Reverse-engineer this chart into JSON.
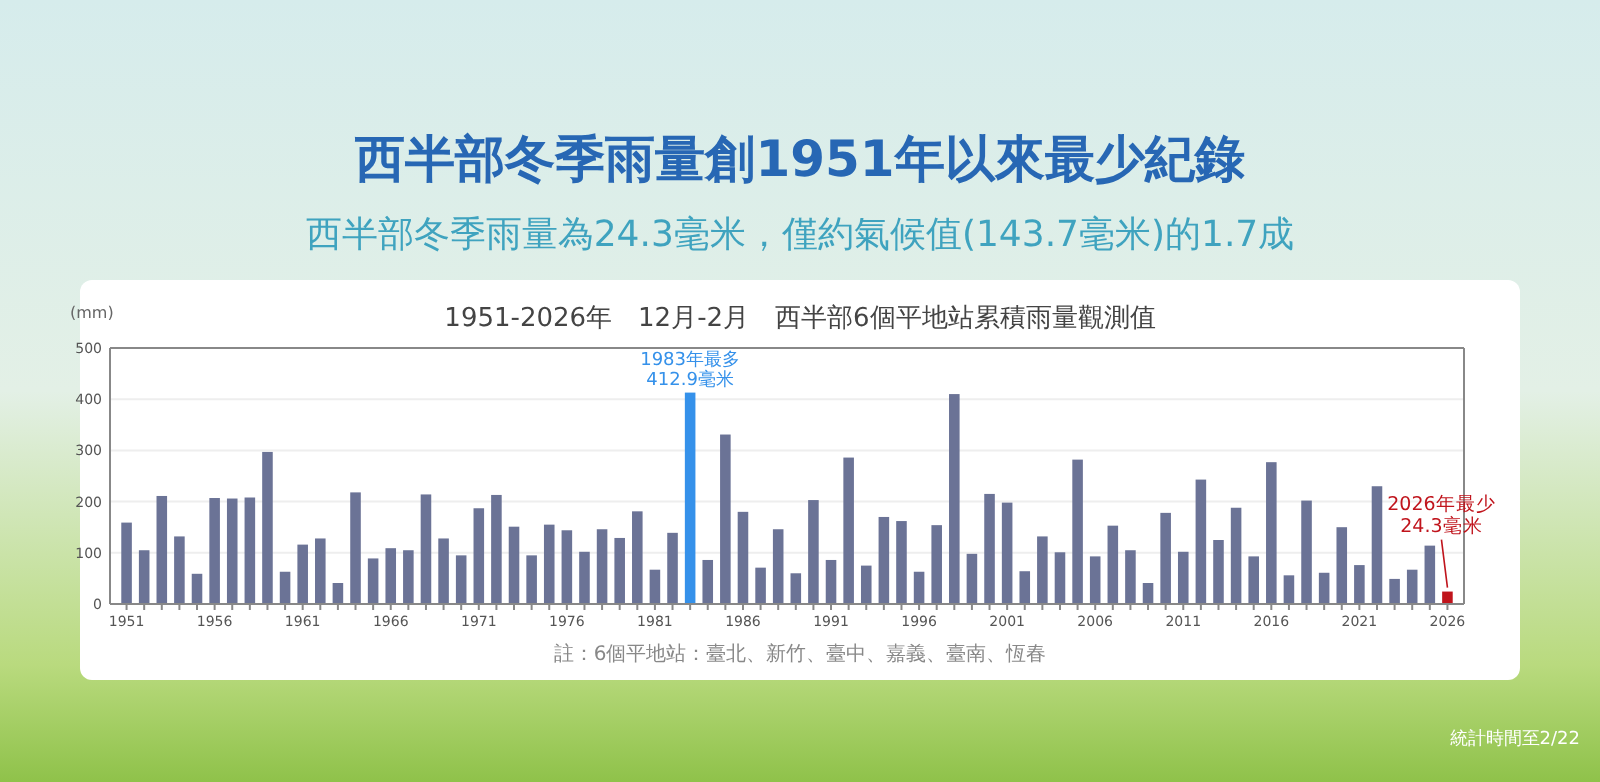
{
  "chart_data": {
    "type": "bar",
    "title": "西半部冬季雨量創1951年以來最少紀錄",
    "subtitle": "西半部冬季雨量為24.3毫米，僅約氣候值(143.7毫米)的1.7成",
    "ylabel": "(mm)",
    "categories": [
      "1951",
      null,
      null,
      null,
      null,
      "1956",
      null,
      null,
      null,
      null,
      "1961",
      null,
      null,
      null,
      null,
      "1966",
      null,
      null,
      null,
      null,
      "1971",
      null,
      null,
      null,
      null,
      "1976",
      null,
      null,
      null,
      null,
      "1981",
      null,
      null,
      null,
      null,
      "1986",
      null,
      null,
      null,
      null,
      "1991",
      null,
      null,
      null,
      null,
      "1996",
      null,
      null,
      null,
      null,
      "2001",
      null,
      null,
      null,
      null,
      "2006",
      null,
      null,
      null,
      null,
      "2011",
      null,
      null,
      null,
      null,
      "2016",
      null,
      null,
      null,
      null,
      "2021",
      null,
      null,
      null,
      null,
      "2026"
    ],
    "values": [
      159,
      105,
      211,
      132,
      59,
      207,
      206,
      208,
      297,
      63,
      116,
      128,
      41,
      218,
      89,
      109,
      105,
      214,
      128,
      95,
      187,
      213,
      151,
      95,
      155,
      144,
      102,
      146,
      129,
      181,
      67,
      139,
      412.9,
      86,
      331,
      180,
      71,
      146,
      60,
      203,
      86,
      286,
      75,
      170,
      162,
      63,
      154,
      410,
      98,
      215,
      198,
      64,
      132,
      101,
      282,
      93,
      153,
      105,
      41,
      178,
      102,
      243,
      125,
      188,
      93,
      277,
      56,
      202,
      61,
      150,
      76,
      230,
      49,
      67,
      114,
      24.3
    ],
    "colors": [
      "#6b7396",
      "#6b7396",
      "#6b7396",
      "#6b7396",
      "#6b7396",
      "#6b7396",
      "#6b7396",
      "#6b7396",
      "#6b7396",
      "#6b7396",
      "#6b7396",
      "#6b7396",
      "#6b7396",
      "#6b7396",
      "#6b7396",
      "#6b7396",
      "#6b7396",
      "#6b7396",
      "#6b7396",
      "#6b7396",
      "#6b7396",
      "#6b7396",
      "#6b7396",
      "#6b7396",
      "#6b7396",
      "#6b7396",
      "#6b7396",
      "#6b7396",
      "#6b7396",
      "#6b7396",
      "#6b7396",
      "#6b7396",
      "#3591ea",
      "#6b7396",
      "#6b7396",
      "#6b7396",
      "#6b7396",
      "#6b7396",
      "#6b7396",
      "#6b7396",
      "#6b7396",
      "#6b7396",
      "#6b7396",
      "#6b7396",
      "#6b7396",
      "#6b7396",
      "#6b7396",
      "#6b7396",
      "#6b7396",
      "#6b7396",
      "#6b7396",
      "#6b7396",
      "#6b7396",
      "#6b7396",
      "#6b7396",
      "#6b7396",
      "#6b7396",
      "#6b7396",
      "#6b7396",
      "#6b7396",
      "#6b7396",
      "#6b7396",
      "#6b7396",
      "#6b7396",
      "#6b7396",
      "#6b7396",
      "#6b7396",
      "#6b7396",
      "#6b7396",
      "#6b7396",
      "#6b7396",
      "#6b7396",
      "#6b7396",
      "#6b7396",
      "#6b7396",
      "#c0141c"
    ],
    "ylim": [
      0,
      500
    ],
    "yticks": [
      0,
      100,
      200,
      300,
      400,
      500
    ],
    "grid": "y",
    "annotations": [
      "1951-2026年　12月-2月　西半部6個平地站累積雨量觀測值",
      {
        "text": "1983年最多\n412.9毫米",
        "y": 412.9
      },
      {
        "text": "2026年最少\n24.3毫米",
        "y": 24.3
      },
      "註：6個平地站：臺北、新竹、臺中、嘉義、臺南、恆春",
      "統計時間至2/22"
    ]
  }
}
